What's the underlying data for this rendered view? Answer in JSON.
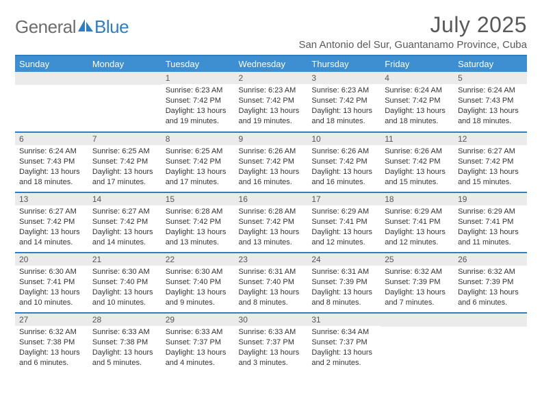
{
  "logo": {
    "part1": "General",
    "part2": "Blue"
  },
  "title": "July 2025",
  "location": "San Antonio del Sur, Guantanamo Province, Cuba",
  "colors": {
    "accent": "#2f7dc3",
    "header_bg": "#3d8fd1",
    "header_fg": "#ffffff",
    "daynum_bg": "#ebebeb",
    "text": "#333333",
    "muted": "#595959"
  },
  "day_headers": [
    "Sunday",
    "Monday",
    "Tuesday",
    "Wednesday",
    "Thursday",
    "Friday",
    "Saturday"
  ],
  "weeks": [
    [
      null,
      null,
      {
        "n": "1",
        "sr": "Sunrise: 6:23 AM",
        "ss": "Sunset: 7:42 PM",
        "dl1": "Daylight: 13 hours",
        "dl2": "and 19 minutes."
      },
      {
        "n": "2",
        "sr": "Sunrise: 6:23 AM",
        "ss": "Sunset: 7:42 PM",
        "dl1": "Daylight: 13 hours",
        "dl2": "and 19 minutes."
      },
      {
        "n": "3",
        "sr": "Sunrise: 6:23 AM",
        "ss": "Sunset: 7:42 PM",
        "dl1": "Daylight: 13 hours",
        "dl2": "and 18 minutes."
      },
      {
        "n": "4",
        "sr": "Sunrise: 6:24 AM",
        "ss": "Sunset: 7:42 PM",
        "dl1": "Daylight: 13 hours",
        "dl2": "and 18 minutes."
      },
      {
        "n": "5",
        "sr": "Sunrise: 6:24 AM",
        "ss": "Sunset: 7:43 PM",
        "dl1": "Daylight: 13 hours",
        "dl2": "and 18 minutes."
      }
    ],
    [
      {
        "n": "6",
        "sr": "Sunrise: 6:24 AM",
        "ss": "Sunset: 7:43 PM",
        "dl1": "Daylight: 13 hours",
        "dl2": "and 18 minutes."
      },
      {
        "n": "7",
        "sr": "Sunrise: 6:25 AM",
        "ss": "Sunset: 7:42 PM",
        "dl1": "Daylight: 13 hours",
        "dl2": "and 17 minutes."
      },
      {
        "n": "8",
        "sr": "Sunrise: 6:25 AM",
        "ss": "Sunset: 7:42 PM",
        "dl1": "Daylight: 13 hours",
        "dl2": "and 17 minutes."
      },
      {
        "n": "9",
        "sr": "Sunrise: 6:26 AM",
        "ss": "Sunset: 7:42 PM",
        "dl1": "Daylight: 13 hours",
        "dl2": "and 16 minutes."
      },
      {
        "n": "10",
        "sr": "Sunrise: 6:26 AM",
        "ss": "Sunset: 7:42 PM",
        "dl1": "Daylight: 13 hours",
        "dl2": "and 16 minutes."
      },
      {
        "n": "11",
        "sr": "Sunrise: 6:26 AM",
        "ss": "Sunset: 7:42 PM",
        "dl1": "Daylight: 13 hours",
        "dl2": "and 15 minutes."
      },
      {
        "n": "12",
        "sr": "Sunrise: 6:27 AM",
        "ss": "Sunset: 7:42 PM",
        "dl1": "Daylight: 13 hours",
        "dl2": "and 15 minutes."
      }
    ],
    [
      {
        "n": "13",
        "sr": "Sunrise: 6:27 AM",
        "ss": "Sunset: 7:42 PM",
        "dl1": "Daylight: 13 hours",
        "dl2": "and 14 minutes."
      },
      {
        "n": "14",
        "sr": "Sunrise: 6:27 AM",
        "ss": "Sunset: 7:42 PM",
        "dl1": "Daylight: 13 hours",
        "dl2": "and 14 minutes."
      },
      {
        "n": "15",
        "sr": "Sunrise: 6:28 AM",
        "ss": "Sunset: 7:42 PM",
        "dl1": "Daylight: 13 hours",
        "dl2": "and 13 minutes."
      },
      {
        "n": "16",
        "sr": "Sunrise: 6:28 AM",
        "ss": "Sunset: 7:42 PM",
        "dl1": "Daylight: 13 hours",
        "dl2": "and 13 minutes."
      },
      {
        "n": "17",
        "sr": "Sunrise: 6:29 AM",
        "ss": "Sunset: 7:41 PM",
        "dl1": "Daylight: 13 hours",
        "dl2": "and 12 minutes."
      },
      {
        "n": "18",
        "sr": "Sunrise: 6:29 AM",
        "ss": "Sunset: 7:41 PM",
        "dl1": "Daylight: 13 hours",
        "dl2": "and 12 minutes."
      },
      {
        "n": "19",
        "sr": "Sunrise: 6:29 AM",
        "ss": "Sunset: 7:41 PM",
        "dl1": "Daylight: 13 hours",
        "dl2": "and 11 minutes."
      }
    ],
    [
      {
        "n": "20",
        "sr": "Sunrise: 6:30 AM",
        "ss": "Sunset: 7:41 PM",
        "dl1": "Daylight: 13 hours",
        "dl2": "and 10 minutes."
      },
      {
        "n": "21",
        "sr": "Sunrise: 6:30 AM",
        "ss": "Sunset: 7:40 PM",
        "dl1": "Daylight: 13 hours",
        "dl2": "and 10 minutes."
      },
      {
        "n": "22",
        "sr": "Sunrise: 6:30 AM",
        "ss": "Sunset: 7:40 PM",
        "dl1": "Daylight: 13 hours",
        "dl2": "and 9 minutes."
      },
      {
        "n": "23",
        "sr": "Sunrise: 6:31 AM",
        "ss": "Sunset: 7:40 PM",
        "dl1": "Daylight: 13 hours",
        "dl2": "and 8 minutes."
      },
      {
        "n": "24",
        "sr": "Sunrise: 6:31 AM",
        "ss": "Sunset: 7:39 PM",
        "dl1": "Daylight: 13 hours",
        "dl2": "and 8 minutes."
      },
      {
        "n": "25",
        "sr": "Sunrise: 6:32 AM",
        "ss": "Sunset: 7:39 PM",
        "dl1": "Daylight: 13 hours",
        "dl2": "and 7 minutes."
      },
      {
        "n": "26",
        "sr": "Sunrise: 6:32 AM",
        "ss": "Sunset: 7:39 PM",
        "dl1": "Daylight: 13 hours",
        "dl2": "and 6 minutes."
      }
    ],
    [
      {
        "n": "27",
        "sr": "Sunrise: 6:32 AM",
        "ss": "Sunset: 7:38 PM",
        "dl1": "Daylight: 13 hours",
        "dl2": "and 6 minutes."
      },
      {
        "n": "28",
        "sr": "Sunrise: 6:33 AM",
        "ss": "Sunset: 7:38 PM",
        "dl1": "Daylight: 13 hours",
        "dl2": "and 5 minutes."
      },
      {
        "n": "29",
        "sr": "Sunrise: 6:33 AM",
        "ss": "Sunset: 7:37 PM",
        "dl1": "Daylight: 13 hours",
        "dl2": "and 4 minutes."
      },
      {
        "n": "30",
        "sr": "Sunrise: 6:33 AM",
        "ss": "Sunset: 7:37 PM",
        "dl1": "Daylight: 13 hours",
        "dl2": "and 3 minutes."
      },
      {
        "n": "31",
        "sr": "Sunrise: 6:34 AM",
        "ss": "Sunset: 7:37 PM",
        "dl1": "Daylight: 13 hours",
        "dl2": "and 2 minutes."
      },
      null,
      null
    ]
  ]
}
